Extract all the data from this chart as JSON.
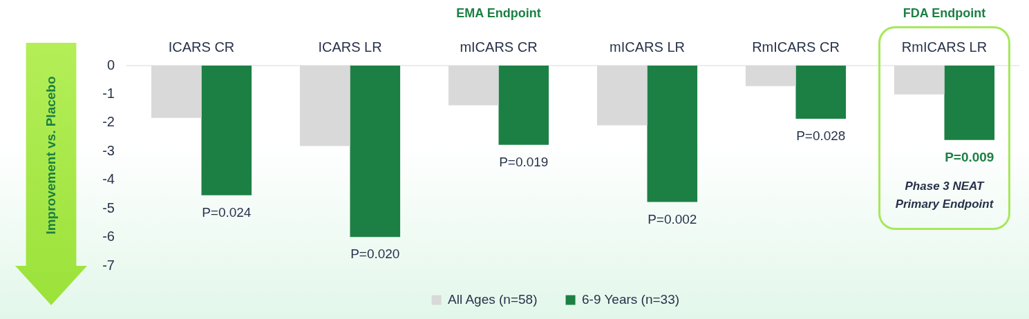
{
  "chart_data": {
    "type": "bar",
    "ylabel": "Improvement vs. Placebo",
    "categories": [
      "ICARS CR",
      "ICARS LR",
      "mICARS CR",
      "mICARS LR",
      "RmICARS CR",
      "RmICARS LR"
    ],
    "series": [
      {
        "name": "All Ages (n=58)",
        "color": "#d9d9d9",
        "values": [
          -1.83,
          -2.81,
          -1.39,
          -2.09,
          -0.72,
          -1.01
        ]
      },
      {
        "name": "6-9 Years (n=33)",
        "color": "#1c8044",
        "values": [
          -4.53,
          -5.99,
          -2.77,
          -4.77,
          -1.86,
          -2.6
        ]
      }
    ],
    "ylim": [
      -7,
      0
    ],
    "yticks": [
      0,
      -1,
      -2,
      -3,
      -4,
      -5,
      -6,
      -7
    ],
    "grid": false,
    "legend": "bottom",
    "annotations": [
      "EMA Endpoint",
      "FDA Endpoint",
      {
        "text": "P=0.024",
        "x": "ICARS CR",
        "y": -4.53
      },
      {
        "text": "P=0.020",
        "x": "ICARS LR",
        "y": -5.99
      },
      {
        "text": "P=0.019",
        "x": "mICARS CR",
        "y": -2.77
      },
      {
        "text": "P=0.002",
        "x": "mICARS LR",
        "y": -4.77
      },
      {
        "text": "P=0.028",
        "x": "RmICARS CR",
        "y": -1.86
      },
      {
        "text": "P=0.009",
        "x": "RmICARS LR",
        "y": -2.6
      },
      "Phase 3 NEAT Primary Endpoint"
    ]
  }
}
